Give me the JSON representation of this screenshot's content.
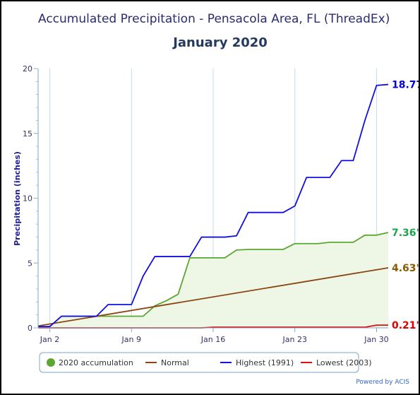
{
  "chart_data": {
    "type": "line",
    "title": "Accumulated Precipitation - Pensacola Area, FL (ThreadEx)",
    "subtitle": "January 2020",
    "ylabel": "Precipitation (inches)",
    "xlabel": "",
    "ylim": [
      0,
      20
    ],
    "yticks": [
      "0",
      "5",
      "10",
      "15",
      "20"
    ],
    "xlim": [
      1,
      31
    ],
    "xticks": [
      {
        "day": 2,
        "label": "Jan 2"
      },
      {
        "day": 9,
        "label": "Jan 9"
      },
      {
        "day": 16,
        "label": "Jan 16"
      },
      {
        "day": 23,
        "label": "Jan 23"
      },
      {
        "day": 30,
        "label": "Jan 30"
      }
    ],
    "grid": true,
    "legend_position": "bottom",
    "credit": "Powered by ACIS",
    "series": [
      {
        "key": "accum",
        "name": "2020 accumulation",
        "color": "#5ca632",
        "fill": "#eef6e6",
        "end_label": "7.36\"",
        "end_color": "#1aa54b",
        "x": [
          1,
          2,
          3,
          4,
          5,
          6,
          7,
          8,
          9,
          10,
          11,
          12,
          13,
          14,
          15,
          16,
          17,
          18,
          19,
          20,
          21,
          22,
          23,
          24,
          25,
          26,
          27,
          28,
          29,
          30,
          31
        ],
        "y": [
          0.1,
          0.1,
          0.9,
          0.9,
          0.9,
          0.9,
          0.9,
          0.9,
          0.9,
          0.9,
          1.7,
          2.1,
          2.6,
          5.4,
          5.4,
          5.4,
          5.4,
          6.0,
          6.05,
          6.05,
          6.05,
          6.05,
          6.5,
          6.5,
          6.5,
          6.6,
          6.6,
          6.6,
          7.15,
          7.15,
          7.36
        ]
      },
      {
        "key": "normal",
        "name": "Normal",
        "color": "#8b4513",
        "end_label": "4.63\"",
        "end_color": "#8b5a00",
        "x": [
          1,
          31
        ],
        "y": [
          0.15,
          4.63
        ]
      },
      {
        "key": "highest",
        "name": "Highest (1991)",
        "color": "#1010e0",
        "end_label": "18.77\"",
        "end_color": "#0000dd",
        "x": [
          1,
          2,
          3,
          4,
          5,
          6,
          7,
          8,
          9,
          10,
          11,
          12,
          13,
          14,
          15,
          16,
          17,
          18,
          19,
          20,
          21,
          22,
          23,
          24,
          25,
          26,
          27,
          28,
          29,
          30,
          31
        ],
        "y": [
          0.1,
          0.1,
          0.9,
          0.9,
          0.9,
          0.9,
          1.8,
          1.8,
          1.8,
          4.0,
          5.5,
          5.5,
          5.5,
          5.5,
          7.0,
          7.0,
          7.0,
          7.1,
          8.9,
          8.9,
          8.9,
          8.9,
          9.4,
          11.6,
          11.6,
          11.6,
          12.9,
          12.9,
          16.0,
          18.7,
          18.77
        ]
      },
      {
        "key": "lowest",
        "name": "Lowest (2003)",
        "color": "#e01010",
        "end_label": "0.21\"",
        "end_color": "#dd0000",
        "x": [
          1,
          2,
          3,
          4,
          5,
          6,
          7,
          8,
          9,
          10,
          11,
          12,
          13,
          14,
          15,
          16,
          17,
          18,
          19,
          20,
          21,
          22,
          23,
          24,
          25,
          26,
          27,
          28,
          29,
          30,
          31
        ],
        "y": [
          0,
          0,
          0,
          0,
          0,
          0,
          0,
          0,
          0,
          0,
          0,
          0,
          0,
          0,
          0,
          0.05,
          0.05,
          0.05,
          0.05,
          0.05,
          0.05,
          0.05,
          0.05,
          0.05,
          0.05,
          0.05,
          0.05,
          0.05,
          0.05,
          0.21,
          0.21
        ]
      }
    ]
  }
}
